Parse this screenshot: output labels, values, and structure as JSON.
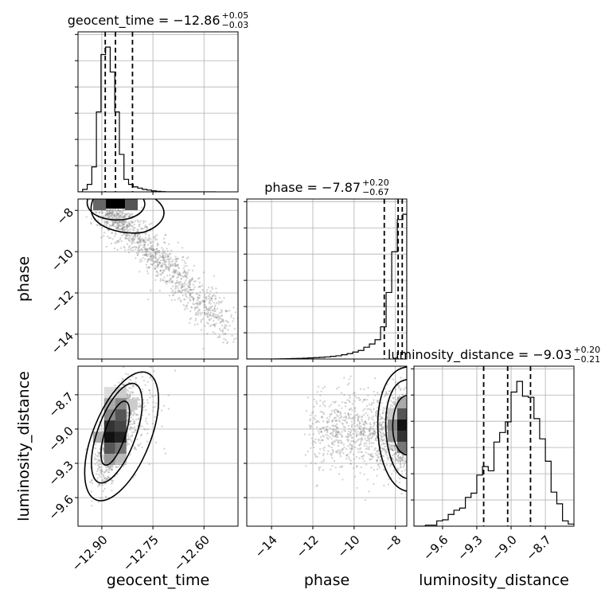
{
  "chart_data": {
    "type": "corner",
    "parameters": [
      "geocent_time",
      "phase",
      "luminosity_distance"
    ],
    "grid": true,
    "titles": [
      {
        "param": "geocent_time",
        "median": "−12.86",
        "plus": "+0.05",
        "minus": "−0.03"
      },
      {
        "param": "phase",
        "median": "−7.87",
        "plus": "+0.20",
        "minus": "−0.67"
      },
      {
        "param": "luminosity_distance",
        "median": "−9.03",
        "plus": "+0.20",
        "minus": "−0.21"
      }
    ],
    "axes": {
      "geocent_time": {
        "range": [
          -12.97,
          -12.5
        ],
        "ticks": [
          -12.9,
          -12.75,
          -12.6
        ],
        "tick_labels": [
          "−12.90",
          "−12.75",
          "−12.60"
        ]
      },
      "phase": {
        "range": [
          -15.2,
          -7.45
        ],
        "ticks": [
          -14,
          -12,
          -10,
          -8
        ],
        "tick_labels": [
          "−14",
          "−12",
          "−10",
          "−8"
        ]
      },
      "luminosity_distance": {
        "range": [
          -9.85,
          -8.45
        ],
        "ticks": [
          -9.6,
          -9.3,
          -9.0,
          -8.7
        ],
        "tick_labels": [
          "−9.6",
          "−9.3",
          "−9.0",
          "−8.7"
        ]
      }
    },
    "quantiles": {
      "geocent_time": [
        -12.89,
        -12.86,
        -12.81
      ],
      "phase": [
        -8.54,
        -7.87,
        -7.67
      ],
      "luminosity_distance": [
        -9.24,
        -9.03,
        -8.83
      ]
    },
    "histograms": {
      "geocent_time": {
        "edges": [
          -12.97,
          -12.9565,
          -12.943,
          -12.9295,
          -12.916,
          -12.9025,
          -12.889,
          -12.8755,
          -12.862,
          -12.8485,
          -12.835,
          -12.8215,
          -12.808,
          -12.7945,
          -12.781,
          -12.7675,
          -12.754,
          -12.7405,
          -12.727,
          -12.7135,
          -12.7,
          -12.6865,
          -12.673,
          -12.6595,
          -12.646,
          -12.6325,
          -12.619,
          -12.6055,
          -12.592,
          -12.5785,
          -12.565
        ],
        "counts": [
          0,
          1,
          3,
          10,
          32,
          55,
          58,
          48,
          32,
          15,
          5,
          3,
          2,
          1.5,
          1,
          0.7,
          0.4,
          0.2,
          0.1,
          0,
          0,
          0,
          0,
          0,
          0,
          0,
          0,
          0,
          0,
          0
        ]
      },
      "phase": {
        "edges": [
          -15.2,
          -14.93,
          -14.66,
          -14.39,
          -14.12,
          -13.85,
          -13.58,
          -13.31,
          -13.04,
          -12.77,
          -12.5,
          -12.23,
          -11.96,
          -11.69,
          -11.42,
          -11.15,
          -10.88,
          -10.61,
          -10.34,
          -10.07,
          -9.8,
          -9.53,
          -9.26,
          -8.99,
          -8.72,
          -8.45,
          -8.18,
          -7.91,
          -7.64,
          -7.45
        ],
        "counts": [
          0,
          0,
          0,
          0,
          0,
          0.1,
          0.2,
          0.3,
          0.5,
          0.6,
          0.8,
          1,
          1.3,
          1.6,
          2,
          2.5,
          3,
          4,
          5,
          6.5,
          8,
          11,
          14,
          18,
          30,
          62,
          100,
          130,
          135
        ]
      },
      "luminosity_distance": {
        "edges": [
          -9.85,
          -9.8,
          -9.75,
          -9.7,
          -9.65,
          -9.6,
          -9.55,
          -9.5,
          -9.45,
          -9.4,
          -9.35,
          -9.3,
          -9.25,
          -9.2,
          -9.15,
          -9.1,
          -9.05,
          -9.0,
          -8.95,
          -8.9,
          -8.85,
          -8.8,
          -8.75,
          -8.7,
          -8.65,
          -8.6,
          -8.55,
          -8.5,
          -8.45
        ],
        "counts": [
          0,
          0,
          1,
          1,
          5,
          6,
          11,
          15,
          17,
          27,
          31,
          48,
          56,
          52,
          79,
          88,
          98,
          126,
          136,
          122,
          121,
          101,
          82,
          61,
          32,
          21,
          5,
          2
        ]
      }
    },
    "scatter_model": {
      "phase_vs_geocent_time": {
        "center": [
          -12.86,
          -7.9
        ],
        "note": "dense near phase −8, trailing toward lower phase as geocent_time increases"
      },
      "luminosity_distance_vs_geocent_time": {
        "center": [
          -12.87,
          -9.05
        ],
        "note": "elongated, positively correlated"
      },
      "luminosity_distance_vs_phase": {
        "center": [
          -7.8,
          -9.0
        ],
        "note": "dense at phase −8, sparse tail to −12"
      }
    }
  }
}
